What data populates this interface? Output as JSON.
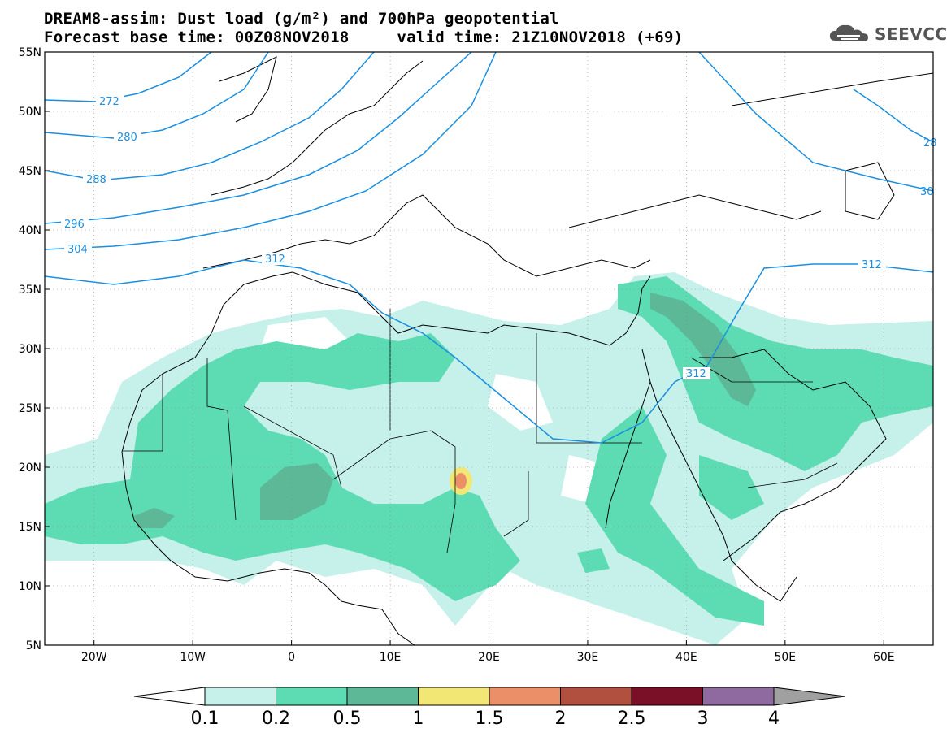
{
  "title": {
    "line1": "DREAM8-assim: Dust load (g/m²) and 700hPa geopotential",
    "line2": "Forecast base time: 00Z08NOV2018     valid time: 21Z10NOV2018 (+69)"
  },
  "logo": {
    "icon": "cloud-icon",
    "text": "SEEVCCC",
    "color": "#555555"
  },
  "map": {
    "lon_range": [
      -25,
      65
    ],
    "lat_range": [
      5,
      55
    ],
    "lat_ticks": [
      "55N",
      "50N",
      "45N",
      "40N",
      "35N",
      "30N",
      "25N",
      "20N",
      "15N",
      "10N",
      "5N"
    ],
    "lon_ticks": [
      "20W",
      "10W",
      "0",
      "10E",
      "20E",
      "30E",
      "40E",
      "50E",
      "60E"
    ],
    "contour_color": "#1a8fe0",
    "contour_labels": [
      "272",
      "280",
      "288",
      "296",
      "304",
      "312",
      "312",
      "312",
      "28",
      "30"
    ]
  },
  "colorbar": {
    "levels": [
      "0.1",
      "0.2",
      "0.5",
      "1",
      "1.5",
      "2",
      "2.5",
      "3",
      "4"
    ],
    "colors": [
      "#c6f0ea",
      "#5ddbb3",
      "#5cb896",
      "#f2e674",
      "#eb8f68",
      "#b2503f",
      "#7a0f28",
      "#8e6aa0"
    ],
    "under_color": "#ffffff",
    "over_color": "#a0a0a0"
  }
}
